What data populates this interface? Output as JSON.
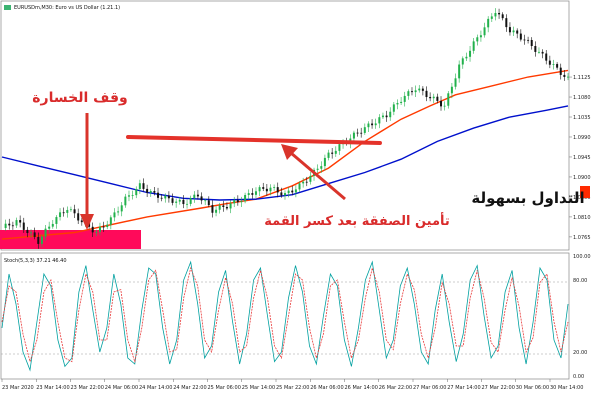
{
  "chart_data": [
    {
      "type": "candlestick",
      "title": "EURUSDm,M30: Euro vs US Dollar (1.21.1)",
      "ylim": [
        1.074,
        1.1285
      ],
      "yticks": [
        "1.1125",
        "1.1080",
        "1.1035",
        "1.0990",
        "1.0945",
        "1.0900",
        "1.0855",
        "1.0810",
        "1.0765"
      ],
      "xticks": [
        "23 Mar 2020",
        "23 Mar 14:00",
        "23 Mar 22:00",
        "24 Mar 06:00",
        "24 Mar 14:00",
        "24 Mar 22:00",
        "25 Mar 06:00",
        "25 Mar 14:00",
        "25 Mar 22:00",
        "26 Mar 06:00",
        "26 Mar 14:00",
        "26 Mar 22:00",
        "27 Mar 06:00",
        "27 Mar 14:00",
        "27 Mar 22:00",
        "30 Mar 06:00",
        "30 Mar 14:00"
      ],
      "price_path": [
        [
          0,
          1.0785
        ],
        [
          4,
          1.08
        ],
        [
          8,
          1.077
        ],
        [
          10,
          1.0755
        ],
        [
          14,
          1.08
        ],
        [
          18,
          1.083
        ],
        [
          22,
          1.08
        ],
        [
          26,
          1.0775
        ],
        [
          30,
          1.0805
        ],
        [
          34,
          1.085
        ],
        [
          38,
          1.088
        ],
        [
          42,
          1.086
        ],
        [
          46,
          1.085
        ],
        [
          50,
          1.084
        ],
        [
          54,
          1.086
        ],
        [
          58,
          1.0825
        ],
        [
          62,
          1.0835
        ],
        [
          66,
          1.085
        ],
        [
          70,
          1.087
        ],
        [
          74,
          1.0875
        ],
        [
          78,
          1.086
        ],
        [
          82,
          1.088
        ],
        [
          86,
          1.091
        ],
        [
          90,
          1.095
        ],
        [
          94,
          1.0975
        ],
        [
          98,
          1.1
        ],
        [
          102,
          1.102
        ],
        [
          106,
          1.104
        ],
        [
          110,
          1.1075
        ],
        [
          114,
          1.11
        ],
        [
          118,
          1.108
        ],
        [
          122,
          1.106
        ],
        [
          126,
          1.115
        ],
        [
          130,
          1.12
        ],
        [
          134,
          1.125
        ],
        [
          136,
          1.1275
        ],
        [
          140,
          1.123
        ],
        [
          144,
          1.121
        ],
        [
          148,
          1.118
        ],
        [
          152,
          1.115
        ],
        [
          156,
          1.112
        ]
      ],
      "series": [
        {
          "name": "",
          "color": "#ff3a00",
          "values": [
            [
              0,
              1.076
            ],
            [
              20,
              1.0775
            ],
            [
              40,
              1.081
            ],
            [
              55,
              1.083
            ],
            [
              62,
              1.084
            ],
            [
              70,
              1.085
            ],
            [
              80,
              1.088
            ],
            [
              90,
              1.092
            ],
            [
              100,
              1.098
            ],
            [
              110,
              1.103
            ],
            [
              118,
              1.106
            ],
            [
              125,
              1.1085
            ],
            [
              135,
              1.1105
            ],
            [
              145,
              1.1125
            ],
            [
              156,
              1.114
            ]
          ]
        },
        {
          "name": "",
          "color": "#0010cc",
          "values": [
            [
              0,
              1.0945
            ],
            [
              10,
              1.0925
            ],
            [
              20,
              1.0905
            ],
            [
              30,
              1.0885
            ],
            [
              40,
              1.0865
            ],
            [
              50,
              1.0852
            ],
            [
              60,
              1.0848
            ],
            [
              70,
              1.085
            ],
            [
              80,
              1.086
            ],
            [
              90,
              1.0885
            ],
            [
              100,
              1.091
            ],
            [
              110,
              1.094
            ],
            [
              120,
              1.098
            ],
            [
              130,
              1.101
            ],
            [
              140,
              1.1035
            ],
            [
              150,
              1.105
            ],
            [
              156,
              1.106
            ]
          ]
        }
      ]
    },
    {
      "type": "line",
      "title": "Stoch(5,3,3) 37.21 46.40",
      "ylim": [
        0,
        100
      ],
      "yticks": [
        "100.00",
        "80.00",
        "20.00",
        "0.00"
      ],
      "series": [
        {
          "name": "",
          "color": "#00a0a0",
          "values": [
            40,
            85,
            60,
            20,
            5,
            45,
            85,
            75,
            30,
            8,
            15,
            70,
            92,
            55,
            20,
            40,
            85,
            60,
            15,
            10,
            55,
            90,
            85,
            40,
            10,
            30,
            80,
            95,
            60,
            15,
            25,
            70,
            88,
            45,
            10,
            35,
            80,
            90,
            50,
            12,
            20,
            65,
            92,
            70,
            25,
            10,
            50,
            85,
            75,
            30,
            8,
            40,
            80,
            95,
            55,
            15,
            30,
            75,
            90,
            60,
            20,
            10,
            55,
            85,
            45,
            12,
            35,
            80,
            92,
            50,
            15,
            25,
            70,
            88,
            40,
            10,
            45,
            90,
            80,
            30,
            15,
            60
          ]
        },
        {
          "name": "",
          "color": "#e83a3a",
          "values": [
            45,
            75,
            70,
            35,
            12,
            30,
            70,
            80,
            45,
            15,
            12,
            55,
            85,
            70,
            30,
            30,
            70,
            72,
            30,
            12,
            40,
            80,
            88,
            55,
            20,
            22,
            65,
            90,
            75,
            30,
            20,
            55,
            82,
            60,
            20,
            25,
            65,
            88,
            65,
            25,
            15,
            50,
            85,
            80,
            40,
            15,
            35,
            75,
            80,
            45,
            15,
            30,
            65,
            90,
            70,
            30,
            22,
            60,
            85,
            72,
            35,
            15,
            40,
            78,
            60,
            25,
            25,
            65,
            88,
            65,
            28,
            20,
            55,
            82,
            58,
            20,
            32,
            78,
            85,
            45,
            20,
            45
          ]
        }
      ]
    }
  ],
  "annotations": {
    "stop_loss": "وقف الخسارة",
    "secure_trade": "تأمين الصفقة بعد كسر القمة"
  },
  "logo": {
    "text": "التداول بسهولة",
    "accent": "#ff2a00",
    "brand": "#111111"
  },
  "colors": {
    "candle_bull": "#22b14c",
    "candle_bear": "#111111",
    "stop_zone": "#ff0a5a",
    "trend_line": "#e4322a",
    "arrow": "#d9342b"
  }
}
